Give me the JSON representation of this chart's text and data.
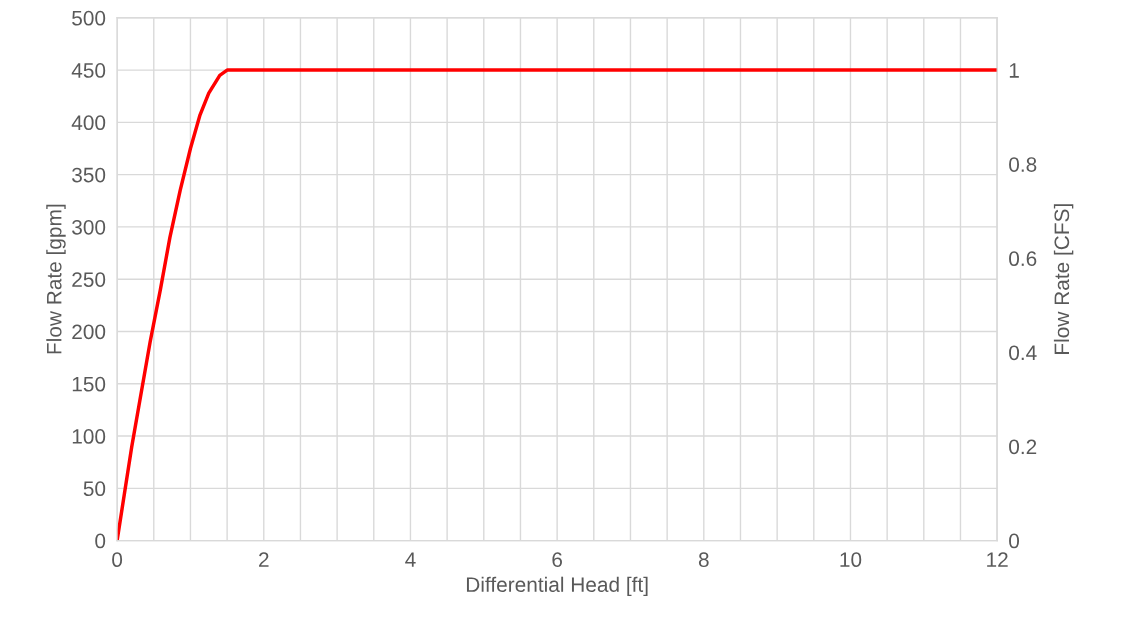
{
  "chart_data": {
    "type": "line",
    "xlabel": "Differential Head [ft]",
    "ylabel": "Flow Rate [gpm]",
    "y2label": "Flow Rate [CFS]",
    "series": [
      {
        "color": "#ff0000",
        "x": [
          0,
          0.1,
          0.2,
          0.31,
          0.45,
          0.59,
          0.72,
          0.86,
          1.0,
          1.13,
          1.25,
          1.4,
          1.5,
          12
        ],
        "values": [
          0,
          45,
          90,
          134,
          190,
          240,
          290,
          335,
          375,
          407,
          428,
          445,
          450,
          450
        ]
      }
    ],
    "xlim": [
      0,
      12
    ],
    "ylim": [
      0,
      500
    ],
    "y2lim": [
      0,
      1.1111
    ],
    "xticks": [
      0,
      {
        "value": 0.5,
        "label": null
      },
      {
        "value": 1,
        "label": null
      },
      {
        "value": 1.5,
        "label": null
      },
      2,
      {
        "value": 2.5,
        "label": null
      },
      {
        "value": 3,
        "label": null
      },
      {
        "value": 3.5,
        "label": null
      },
      4,
      {
        "value": 4.5,
        "label": null
      },
      {
        "value": 5,
        "label": null
      },
      {
        "value": 5.5,
        "label": null
      },
      6,
      {
        "value": 6.5,
        "label": null
      },
      {
        "value": 7,
        "label": null
      },
      {
        "value": 7.5,
        "label": null
      },
      8,
      {
        "value": 8.5,
        "label": null
      },
      {
        "value": 9,
        "label": null
      },
      {
        "value": 9.5,
        "label": null
      },
      10,
      {
        "value": 10.5,
        "label": null
      },
      {
        "value": 11,
        "label": null
      },
      {
        "value": 11.5,
        "label": null
      },
      12
    ],
    "yticks": [
      0,
      50,
      100,
      150,
      200,
      250,
      300,
      350,
      400,
      450,
      500
    ],
    "y2ticks": [
      0,
      0.2,
      0.4,
      0.6,
      0.8,
      1
    ],
    "grid": true,
    "line_style": "solid",
    "marker": "none"
  }
}
